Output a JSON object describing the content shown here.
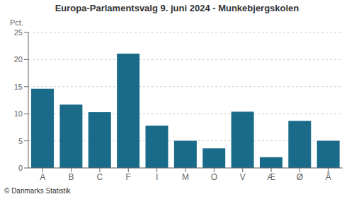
{
  "chart_data": {
    "type": "bar",
    "title": "Europa-Parlamentsvalg 9. juni 2024 - Munkebjergskolen",
    "ylabel": "Pct.",
    "footer": "© Danmarks Statistik",
    "categories": [
      "A",
      "B",
      "C",
      "F",
      "I",
      "M",
      "O",
      "V",
      "Æ",
      "Ø",
      "Å"
    ],
    "values": [
      14.6,
      11.7,
      10.3,
      21.1,
      7.8,
      5.0,
      3.6,
      10.4,
      2.0,
      8.7,
      5.0
    ],
    "color": "#1a6b8a",
    "ylim": [
      0,
      25
    ],
    "yticks": [
      0,
      5,
      10,
      15,
      20,
      25
    ],
    "grid": true
  }
}
